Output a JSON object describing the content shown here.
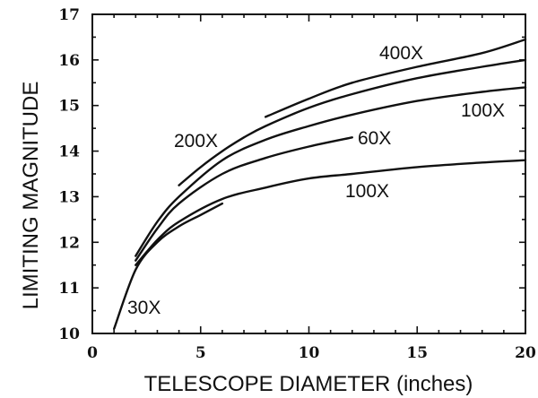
{
  "chart_data": {
    "type": "line",
    "xlabel": "TELESCOPE DIAMETER (inches)",
    "ylabel": "LIMITING MAGNITUDE",
    "xlim": [
      0,
      20
    ],
    "ylim": [
      10,
      17
    ],
    "x_ticks": [
      0,
      5,
      10,
      15,
      20
    ],
    "y_ticks": [
      10,
      11,
      12,
      13,
      14,
      15,
      16,
      17
    ],
    "grid": false,
    "series": [
      {
        "name": "30X",
        "x": [
          1,
          2,
          3,
          4,
          5,
          6
        ],
        "y": [
          10.1,
          11.4,
          12.0,
          12.35,
          12.6,
          12.85
        ]
      },
      {
        "name": "100X",
        "x": [
          2,
          3,
          4,
          6,
          8,
          10,
          12,
          15,
          18,
          20
        ],
        "y": [
          11.5,
          12.05,
          12.45,
          12.95,
          13.2,
          13.4,
          13.5,
          13.65,
          13.75,
          13.8
        ]
      },
      {
        "name": "60X",
        "x": [
          2,
          3,
          4,
          6,
          8,
          10,
          12
        ],
        "y": [
          11.6,
          12.3,
          12.85,
          13.5,
          13.85,
          14.1,
          14.3
        ]
      },
      {
        "name": "100X",
        "x": [
          2,
          3,
          4,
          6,
          8,
          10,
          12,
          15,
          18,
          20
        ],
        "y": [
          11.7,
          12.45,
          13.0,
          13.8,
          14.25,
          14.55,
          14.8,
          15.1,
          15.3,
          15.4
        ]
      },
      {
        "name": "200X",
        "x": [
          4,
          5,
          6,
          7,
          8,
          10,
          12,
          15,
          18,
          20
        ],
        "y": [
          13.25,
          13.65,
          14.0,
          14.3,
          14.55,
          14.95,
          15.25,
          15.6,
          15.85,
          16.0
        ]
      },
      {
        "name": "400X",
        "x": [
          8,
          10,
          12,
          15,
          18,
          20
        ],
        "y": [
          14.75,
          15.15,
          15.5,
          15.85,
          16.15,
          16.45
        ]
      }
    ]
  }
}
